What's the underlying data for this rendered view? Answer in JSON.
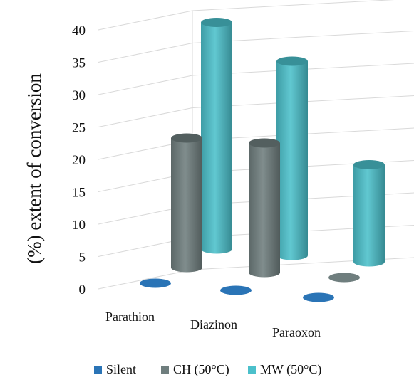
{
  "chart_data": {
    "type": "bar",
    "style": "3d-cylinder",
    "categories": [
      "Parathion",
      "Diazinon",
      "Paraoxon"
    ],
    "series": [
      {
        "name": "Silent",
        "color": "#2a74b6",
        "values": [
          0,
          0,
          0
        ]
      },
      {
        "name": "CH (50°C)",
        "color": "#6f7e7e",
        "values": [
          20,
          20,
          0
        ]
      },
      {
        "name": "MW (50°C)",
        "color": "#4bc0cb",
        "values": [
          35,
          30,
          15
        ]
      }
    ],
    "ylabel": "(%) extent of conversion",
    "ylim": [
      0,
      40
    ],
    "yticks": [
      "0",
      "5",
      "10",
      "15",
      "20",
      "25",
      "30",
      "35",
      "40"
    ],
    "grid": true,
    "legend_position": "bottom"
  }
}
